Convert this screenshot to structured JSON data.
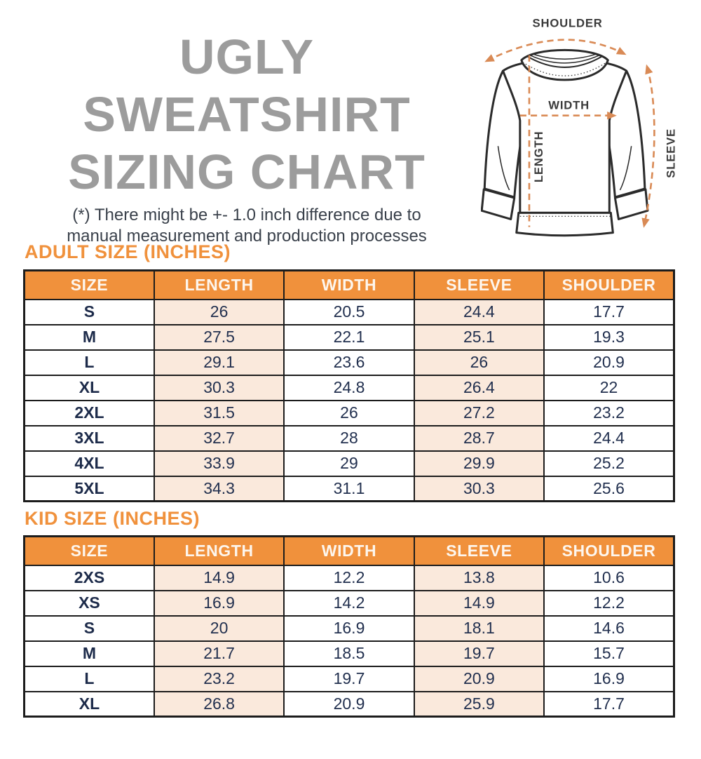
{
  "header": {
    "title_line1": "UGLY SWEATSHIRT",
    "title_line2": "SIZING CHART",
    "disclaimer_line1": "(*) There might be +- 1.0 inch difference due to",
    "disclaimer_line2": "manual measurement and production processes"
  },
  "diagram": {
    "labels": {
      "shoulder": "SHOULDER",
      "width": "WIDTH",
      "length": "LENGTH",
      "sleeve": "SLEEVE"
    }
  },
  "colors": {
    "accent_orange": "#f0913c",
    "stripe_peach": "#fae9dc",
    "table_border": "#1c1c1c",
    "cell_text_navy": "#22304f",
    "title_gray": "#9c9c9c",
    "dashed_arrow_orange": "#d98a55"
  },
  "chart_data": [
    {
      "type": "table",
      "title": "ADULT SIZE (INCHES)",
      "columns": [
        "SIZE",
        "LENGTH",
        "WIDTH",
        "SLEEVE",
        "SHOULDER"
      ],
      "rows": [
        [
          "S",
          "26",
          "20.5",
          "24.4",
          "17.7"
        ],
        [
          "M",
          "27.5",
          "22.1",
          "25.1",
          "19.3"
        ],
        [
          "L",
          "29.1",
          "23.6",
          "26",
          "20.9"
        ],
        [
          "XL",
          "30.3",
          "24.8",
          "26.4",
          "22"
        ],
        [
          "2XL",
          "31.5",
          "26",
          "27.2",
          "23.2"
        ],
        [
          "3XL",
          "32.7",
          "28",
          "28.7",
          "24.4"
        ],
        [
          "4XL",
          "33.9",
          "29",
          "29.9",
          "25.2"
        ],
        [
          "5XL",
          "34.3",
          "31.1",
          "30.3",
          "25.6"
        ]
      ]
    },
    {
      "type": "table",
      "title": "KID SIZE (INCHES)",
      "columns": [
        "SIZE",
        "LENGTH",
        "WIDTH",
        "SLEEVE",
        "SHOULDER"
      ],
      "rows": [
        [
          "2XS",
          "14.9",
          "12.2",
          "13.8",
          "10.6"
        ],
        [
          "XS",
          "16.9",
          "14.2",
          "14.9",
          "12.2"
        ],
        [
          "S",
          "20",
          "16.9",
          "18.1",
          "14.6"
        ],
        [
          "M",
          "21.7",
          "18.5",
          "19.7",
          "15.7"
        ],
        [
          "L",
          "23.2",
          "19.7",
          "20.9",
          "16.9"
        ],
        [
          "XL",
          "26.8",
          "20.9",
          "25.9",
          "17.7"
        ]
      ]
    }
  ]
}
